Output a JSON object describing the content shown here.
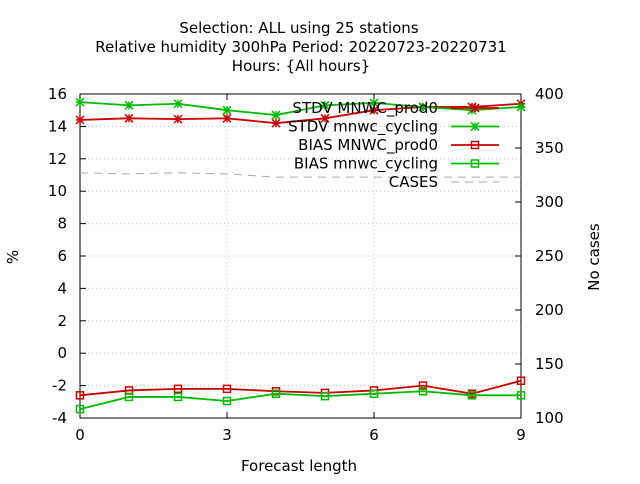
{
  "chart_data": {
    "type": "line",
    "title_lines": [
      "Selection: ALL using    25 stations",
      "Relative humidity 300hPa   Period: 20220723-20220731",
      "Hours: {All hours}"
    ],
    "xlabel": "Forecast length",
    "ylabel": "%",
    "y2label": "No cases",
    "xlim": [
      0,
      9
    ],
    "ylim": [
      -4,
      16
    ],
    "y2lim": [
      100,
      400
    ],
    "x_ticks": [
      "0",
      "3",
      "6",
      "9"
    ],
    "y_ticks": [
      "-4",
      "-2",
      "0",
      "2",
      "4",
      "6",
      "8",
      "10",
      "12",
      "14",
      "16"
    ],
    "y2_ticks": [
      "100",
      "150",
      "200",
      "250",
      "300",
      "350",
      "400"
    ],
    "grid": true,
    "legend_position": "top-right",
    "x": [
      0,
      1,
      2,
      3,
      4,
      5,
      6,
      7,
      8,
      9
    ],
    "series": [
      {
        "name": "STDV MNWC_prod0",
        "axis": "y1",
        "marker": "star",
        "color": "#cc0000",
        "values": [
          14.4,
          14.5,
          14.45,
          14.5,
          14.2,
          14.5,
          15.0,
          15.2,
          15.2,
          15.4
        ]
      },
      {
        "name": "STDV mnwc_cycling",
        "axis": "y1",
        "marker": "star",
        "color": "#00bb00",
        "values": [
          15.5,
          15.3,
          15.4,
          15.0,
          14.7,
          15.3,
          15.45,
          15.2,
          15.0,
          15.2
        ]
      },
      {
        "name": "BIAS MNWC_prod0",
        "axis": "y1",
        "marker": "square",
        "color": "#cc0000",
        "values": [
          -2.6,
          -2.3,
          -2.2,
          -2.2,
          -2.35,
          -2.45,
          -2.3,
          -2.0,
          -2.5,
          -1.7
        ]
      },
      {
        "name": "BIAS mnwc_cycling",
        "axis": "y1",
        "marker": "square",
        "color": "#00bb00",
        "values": [
          -3.45,
          -2.7,
          -2.7,
          -2.95,
          -2.5,
          -2.65,
          -2.5,
          -2.35,
          -2.6,
          -2.6
        ]
      },
      {
        "name": "CASES",
        "axis": "y2",
        "marker": "none",
        "color": "#aaaaaa",
        "dashed": true,
        "values": [
          327,
          326,
          327,
          326,
          323,
          323,
          323,
          323,
          323,
          323
        ]
      }
    ]
  }
}
